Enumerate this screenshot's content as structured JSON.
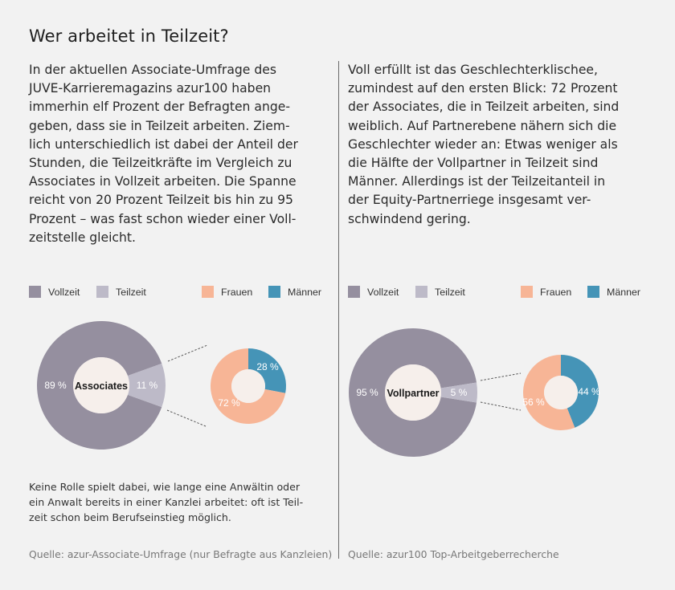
{
  "title": "Wer arbeitet in Teilzeit?",
  "left_column": {
    "text_lines": [
      "In der aktuellen Associate-Umfrage des",
      "JUVE-Karrieremagazins azur100 haben",
      "immerhin elf Prozent der Befragten ange-",
      "geben, dass sie in Teilzeit arbeiten. Ziem-",
      "lich unterschiedlich ist dabei der Anteil der",
      "Stunden, die Teilzeitkräfte im Vergleich zu",
      "Associates in Vollzeit arbeiten. Die Spanne",
      "reicht von 20 Prozent Teilzeit bis hin zu 95",
      "Prozent – was fast schon wieder einer Voll-",
      "zeitstelle gleicht."
    ],
    "note_lines": [
      "Keine Rolle spielt dabei, wie lange eine Anwältin oder",
      "ein Anwalt bereits in einer Kanzlei arbeitet: oft ist Teil-",
      "zeit schon beim Berufseinstieg möglich."
    ],
    "source": "Quelle: azur-Associate-Umfrage (nur Befragte aus Kanzleien)"
  },
  "right_column": {
    "text_lines": [
      "Voll erfüllt ist das Geschlechterklischee,",
      "zumindest auf den ersten Blick: 72 Prozent",
      "der Associates, die in Teilzeit arbeiten, sind",
      "weiblich. Auf Partnerebene nähern sich die",
      "Geschlechter wieder an: Etwas weniger als",
      "die Hälfte der Vollpartner in Teilzeit sind",
      "Männer. Allerdings ist der Teilzeitanteil in",
      "der Equity-Partnerriege insgesamt ver-",
      "schwindend gering."
    ],
    "source": "Quelle: azur100 Top-Arbeitgeberrecherche"
  },
  "legend": [
    {
      "label": "Vollzeit",
      "color": "#958f9f"
    },
    {
      "label": "Teilzeit",
      "color": "#bdbac8"
    },
    {
      "label": "Frauen",
      "color": "#f7b596"
    },
    {
      "label": "Männer",
      "color": "#4594b7"
    }
  ],
  "colors": {
    "background": "#f2f2f2",
    "donut_center": "#f6efeb",
    "vollzeit": "#958f9f",
    "teilzeit": "#bdbac8",
    "frauen": "#f7b596",
    "maenner": "#4594b7"
  },
  "chart_data": [
    {
      "type": "pie",
      "title": "Associates",
      "center_label": "Associates",
      "categories": [
        "Vollzeit",
        "Teilzeit"
      ],
      "values": [
        89,
        11
      ],
      "labels": [
        "89 %",
        "11 %"
      ]
    },
    {
      "type": "pie",
      "title": "Associates in Teilzeit nach Geschlecht",
      "categories": [
        "Männer",
        "Frauen"
      ],
      "values": [
        28,
        72
      ],
      "labels": [
        "28 %",
        "72 %"
      ]
    },
    {
      "type": "pie",
      "title": "Vollpartner",
      "center_label": "Vollpartner",
      "categories": [
        "Vollzeit",
        "Teilzeit"
      ],
      "values": [
        95,
        5
      ],
      "labels": [
        "95 %",
        "5 %"
      ]
    },
    {
      "type": "pie",
      "title": "Vollpartner in Teilzeit nach Geschlecht",
      "categories": [
        "Männer",
        "Frauen"
      ],
      "values": [
        44,
        56
      ],
      "labels": [
        "44 %",
        "56 %"
      ]
    }
  ]
}
